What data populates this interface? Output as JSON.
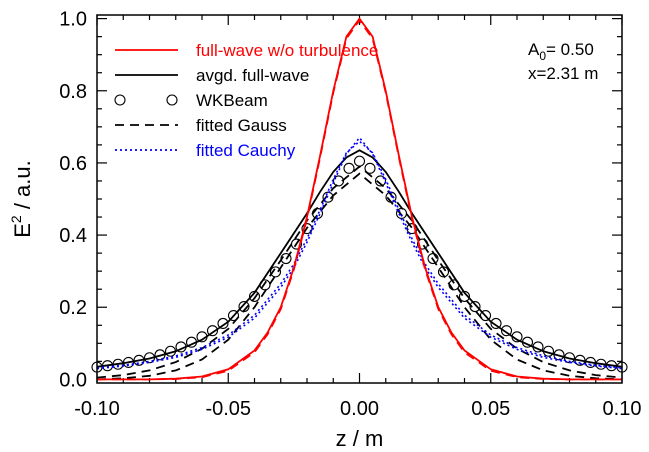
{
  "chart_data": {
    "type": "line",
    "xlabel": "z / m",
    "ylabel_main": "E",
    "ylabel_sup": "2",
    "ylabel_rest": " / a.u.",
    "xlim": [
      -0.1,
      0.1
    ],
    "ylim": [
      -0.01,
      1.01
    ],
    "xticks": [
      -0.1,
      -0.05,
      0.0,
      0.05,
      0.1
    ],
    "xtick_labels": [
      "-0.10",
      "-0.05",
      "0.00",
      "0.05",
      "0.10"
    ],
    "yticks": [
      0.0,
      0.2,
      0.4,
      0.6,
      0.8,
      1.0
    ],
    "ytick_labels": [
      "0.0",
      "0.2",
      "0.4",
      "0.6",
      "0.8",
      "1.0"
    ],
    "grid": false,
    "legend_position": "top-left",
    "annotation": {
      "amp_main": "A",
      "amp_sub": "0",
      "amp_rest": "= 0.50",
      "x_text": "x=2.31 m"
    },
    "series": [
      {
        "name": "full-wave w/o turbulence",
        "style": "solid",
        "color": "#ff0000",
        "x": [
          -0.1,
          -0.09,
          -0.08,
          -0.07,
          -0.06,
          -0.05,
          -0.04,
          -0.035,
          -0.03,
          -0.025,
          -0.02,
          -0.015,
          -0.01,
          -0.005,
          0.0,
          0.005,
          0.01,
          0.015,
          0.02,
          0.025,
          0.03,
          0.035,
          0.04,
          0.05,
          0.06,
          0.07,
          0.08,
          0.09,
          0.1
        ],
        "y": [
          0.0,
          0.0,
          0.0,
          0.002,
          0.008,
          0.028,
          0.08,
          0.13,
          0.2,
          0.31,
          0.45,
          0.62,
          0.8,
          0.95,
          1.0,
          0.95,
          0.8,
          0.62,
          0.45,
          0.31,
          0.2,
          0.13,
          0.08,
          0.028,
          0.008,
          0.002,
          0.0,
          0.0,
          0.0
        ]
      },
      {
        "name": "",
        "style": "dashed",
        "color": "#ff0000",
        "x": [
          -0.1,
          -0.09,
          -0.08,
          -0.07,
          -0.06,
          -0.05,
          -0.04,
          -0.035,
          -0.03,
          -0.025,
          -0.02,
          -0.015,
          -0.01,
          -0.005,
          0.0,
          0.005,
          0.01,
          0.015,
          0.02,
          0.025,
          0.03,
          0.035,
          0.04,
          0.05,
          0.06,
          0.07,
          0.08,
          0.09,
          0.1
        ],
        "y": [
          0.0,
          0.0,
          0.0,
          0.001,
          0.006,
          0.024,
          0.075,
          0.125,
          0.195,
          0.305,
          0.445,
          0.615,
          0.795,
          0.945,
          0.995,
          0.945,
          0.795,
          0.615,
          0.445,
          0.305,
          0.195,
          0.125,
          0.075,
          0.024,
          0.006,
          0.001,
          0.0,
          0.0,
          0.0
        ]
      },
      {
        "name": "avgd. full-wave",
        "style": "solid",
        "color": "#000000",
        "x": [
          -0.1,
          -0.09,
          -0.08,
          -0.07,
          -0.06,
          -0.05,
          -0.04,
          -0.03,
          -0.02,
          -0.015,
          -0.01,
          -0.005,
          0.0,
          0.005,
          0.01,
          0.015,
          0.02,
          0.03,
          0.04,
          0.05,
          0.06,
          0.07,
          0.08,
          0.09,
          0.1
        ],
        "y": [
          0.035,
          0.045,
          0.058,
          0.078,
          0.11,
          0.16,
          0.24,
          0.35,
          0.46,
          0.52,
          0.575,
          0.615,
          0.635,
          0.615,
          0.575,
          0.52,
          0.46,
          0.35,
          0.24,
          0.16,
          0.11,
          0.078,
          0.058,
          0.045,
          0.035
        ]
      },
      {
        "name": "WKBeam",
        "style": "circles",
        "color": "#000000",
        "x": [
          -0.1,
          -0.096,
          -0.092,
          -0.088,
          -0.084,
          -0.08,
          -0.076,
          -0.072,
          -0.068,
          -0.064,
          -0.06,
          -0.056,
          -0.052,
          -0.048,
          -0.044,
          -0.04,
          -0.036,
          -0.032,
          -0.028,
          -0.024,
          -0.02,
          -0.016,
          -0.012,
          -0.008,
          -0.004,
          0.0,
          0.004,
          0.008,
          0.012,
          0.016,
          0.02,
          0.024,
          0.028,
          0.032,
          0.036,
          0.04,
          0.044,
          0.048,
          0.052,
          0.056,
          0.06,
          0.064,
          0.068,
          0.072,
          0.076,
          0.08,
          0.084,
          0.088,
          0.092,
          0.096,
          0.1
        ],
        "y": [
          0.034,
          0.038,
          0.042,
          0.047,
          0.053,
          0.06,
          0.068,
          0.078,
          0.09,
          0.103,
          0.118,
          0.135,
          0.155,
          0.177,
          0.202,
          0.23,
          0.262,
          0.298,
          0.335,
          0.375,
          0.418,
          0.46,
          0.505,
          0.55,
          0.585,
          0.605,
          0.585,
          0.55,
          0.505,
          0.46,
          0.418,
          0.375,
          0.335,
          0.298,
          0.262,
          0.23,
          0.202,
          0.177,
          0.155,
          0.135,
          0.118,
          0.103,
          0.09,
          0.078,
          0.068,
          0.06,
          0.053,
          0.047,
          0.042,
          0.038,
          0.034
        ]
      },
      {
        "name": "fitted Gauss",
        "style": "dashed",
        "color": "#000000",
        "x": [
          -0.1,
          -0.09,
          -0.08,
          -0.07,
          -0.06,
          -0.05,
          -0.04,
          -0.03,
          -0.02,
          -0.01,
          0.0,
          0.01,
          0.02,
          0.03,
          0.04,
          0.05,
          0.06,
          0.07,
          0.08,
          0.09,
          0.1
        ],
        "y": [
          0.0,
          0.003,
          0.01,
          0.025,
          0.055,
          0.11,
          0.2,
          0.31,
          0.42,
          0.51,
          0.57,
          0.51,
          0.42,
          0.31,
          0.2,
          0.11,
          0.055,
          0.025,
          0.01,
          0.003,
          0.0
        ]
      },
      {
        "name": "",
        "style": "dashed",
        "color": "#000000",
        "x": [
          -0.1,
          -0.09,
          -0.08,
          -0.07,
          -0.06,
          -0.05,
          -0.04,
          -0.03,
          -0.02,
          -0.01,
          0.0,
          0.01,
          0.02,
          0.03,
          0.04,
          0.05,
          0.06,
          0.07,
          0.08,
          0.09,
          0.1
        ],
        "y": [
          0.005,
          0.012,
          0.025,
          0.048,
          0.085,
          0.14,
          0.225,
          0.33,
          0.44,
          0.53,
          0.59,
          0.53,
          0.44,
          0.33,
          0.225,
          0.14,
          0.085,
          0.048,
          0.025,
          0.012,
          0.005
        ]
      },
      {
        "name": "fitted Cauchy",
        "style": "dotted",
        "color": "#0000ff",
        "x": [
          -0.1,
          -0.09,
          -0.08,
          -0.07,
          -0.06,
          -0.05,
          -0.04,
          -0.03,
          -0.025,
          -0.02,
          -0.015,
          -0.01,
          -0.005,
          0.0,
          0.005,
          0.01,
          0.015,
          0.02,
          0.025,
          0.03,
          0.04,
          0.05,
          0.06,
          0.07,
          0.08,
          0.09,
          0.1
        ],
        "y": [
          0.03,
          0.037,
          0.047,
          0.061,
          0.083,
          0.117,
          0.17,
          0.255,
          0.31,
          0.38,
          0.46,
          0.545,
          0.625,
          0.67,
          0.625,
          0.545,
          0.46,
          0.38,
          0.31,
          0.255,
          0.17,
          0.117,
          0.083,
          0.061,
          0.047,
          0.037,
          0.03
        ]
      },
      {
        "name": "",
        "style": "dotted",
        "color": "#0000ff",
        "x": [
          -0.1,
          -0.09,
          -0.08,
          -0.07,
          -0.06,
          -0.05,
          -0.04,
          -0.03,
          -0.025,
          -0.02,
          -0.015,
          -0.01,
          -0.005,
          0.0,
          0.005,
          0.01,
          0.015,
          0.02,
          0.025,
          0.03,
          0.04,
          0.05,
          0.06,
          0.07,
          0.08,
          0.09,
          0.1
        ],
        "y": [
          0.032,
          0.039,
          0.05,
          0.065,
          0.088,
          0.123,
          0.178,
          0.265,
          0.32,
          0.39,
          0.47,
          0.555,
          0.628,
          0.66,
          0.628,
          0.555,
          0.47,
          0.39,
          0.32,
          0.265,
          0.178,
          0.123,
          0.088,
          0.065,
          0.05,
          0.039,
          0.032
        ]
      }
    ]
  }
}
